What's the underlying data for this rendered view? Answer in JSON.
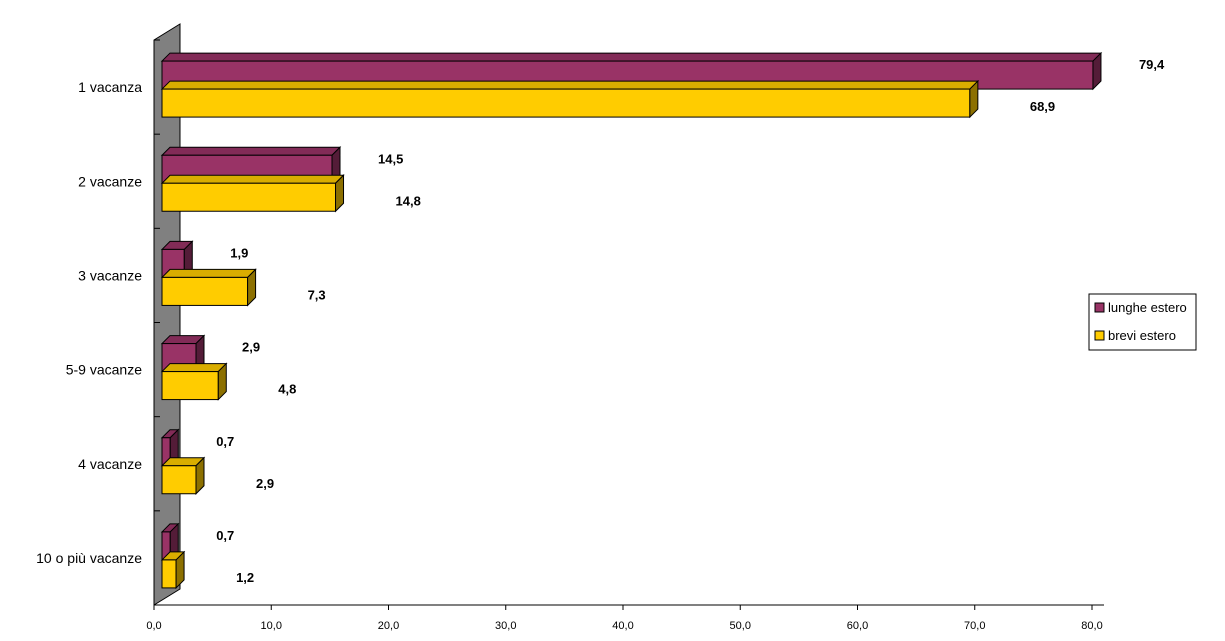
{
  "chart_data": {
    "type": "bar",
    "orientation": "horizontal",
    "categories": [
      "1 vacanza",
      "2 vacanze",
      "3 vacanze",
      "5-9 vacanze",
      "4 vacanze",
      "10 o più vacanze"
    ],
    "series": [
      {
        "name": "lunghe estero",
        "values": [
          79.4,
          14.5,
          1.9,
          2.9,
          0.7,
          0.7
        ],
        "labels": [
          "79,4",
          "14,5",
          "1,9",
          "2,9",
          "0,7",
          "0,7"
        ],
        "color": "#993366"
      },
      {
        "name": "brevi estero",
        "values": [
          68.9,
          14.8,
          7.3,
          4.8,
          2.9,
          1.2
        ],
        "labels": [
          "68,9",
          "14,8",
          "7,3",
          "4,8",
          "2,9",
          "1,2"
        ],
        "color": "#FFCC00"
      }
    ],
    "xlim": [
      0,
      80
    ],
    "xticks": [
      0,
      10,
      20,
      30,
      40,
      50,
      60,
      70,
      80
    ],
    "xtick_labels": [
      "0,0",
      "10,0",
      "20,0",
      "30,0",
      "40,0",
      "50,0",
      "60,0",
      "70,0",
      "80,0"
    ],
    "title": "",
    "xlabel": "",
    "ylabel": "",
    "grid": false,
    "legend_position": "right",
    "style": "3d",
    "colors": {
      "wall": "#808080",
      "axis": "#000000",
      "outline": "#000000"
    }
  }
}
